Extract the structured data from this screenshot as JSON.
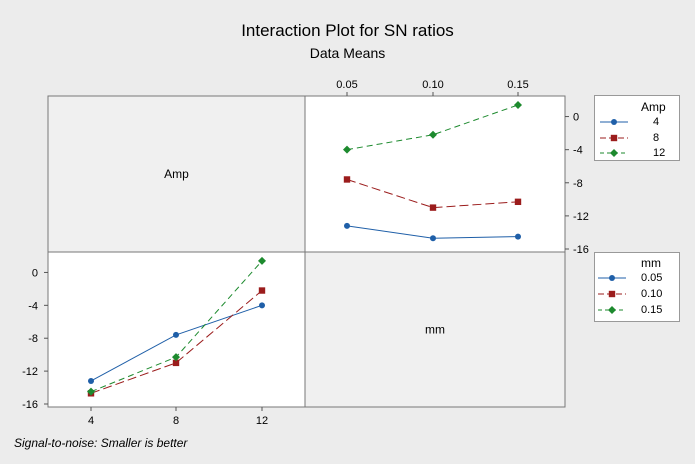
{
  "chart_data": {
    "type": "line",
    "title": "Interaction Plot for SN ratios",
    "subtitle": "Data Means",
    "footnote": "Signal-to-noise: Smaller is better",
    "factors": [
      "Amp",
      "mm"
    ],
    "ylim": [
      -16,
      2
    ],
    "yticks": [
      "0",
      "-4",
      "-8",
      "-12",
      "-16"
    ],
    "ytick_values": [
      0,
      -4,
      -8,
      -12,
      -16
    ],
    "panels": [
      {
        "name": "top-right",
        "x_factor": "mm",
        "trace_factor": "Amp",
        "x_tick_labels": [
          "0.05",
          "0.10",
          "0.15"
        ],
        "series": [
          {
            "name": "4",
            "color": "#1f5fa8",
            "marker": "circle",
            "dash": "solid",
            "values": [
              -13.2,
              -14.7,
              -14.5
            ]
          },
          {
            "name": "8",
            "color": "#9b1c1c",
            "marker": "square",
            "dash": "longdash",
            "values": [
              -7.6,
              -11.0,
              -10.3
            ]
          },
          {
            "name": "12",
            "color": "#1d8a2e",
            "marker": "diamond",
            "dash": "shortdash",
            "values": [
              -4.0,
              -2.2,
              1.4
            ]
          }
        ]
      },
      {
        "name": "bottom-left",
        "x_factor": "Amp",
        "trace_factor": "mm",
        "x_tick_labels": [
          "4",
          "8",
          "12"
        ],
        "series": [
          {
            "name": "0.05",
            "color": "#1f5fa8",
            "marker": "circle",
            "dash": "solid",
            "values": [
              -13.2,
              -7.6,
              -4.0
            ]
          },
          {
            "name": "0.10",
            "color": "#9b1c1c",
            "marker": "square",
            "dash": "longdash",
            "values": [
              -14.7,
              -11.0,
              -2.2
            ]
          },
          {
            "name": "0.15",
            "color": "#1d8a2e",
            "marker": "diamond",
            "dash": "shortdash",
            "values": [
              -14.5,
              -10.3,
              1.4
            ]
          }
        ]
      }
    ],
    "diagonal_labels": [
      "Amp",
      "mm"
    ],
    "legends": [
      {
        "title": "Amp",
        "entries": [
          "4",
          "8",
          "12"
        ]
      },
      {
        "title": "mm",
        "entries": [
          "0.05",
          "0.10",
          "0.15"
        ]
      }
    ]
  }
}
